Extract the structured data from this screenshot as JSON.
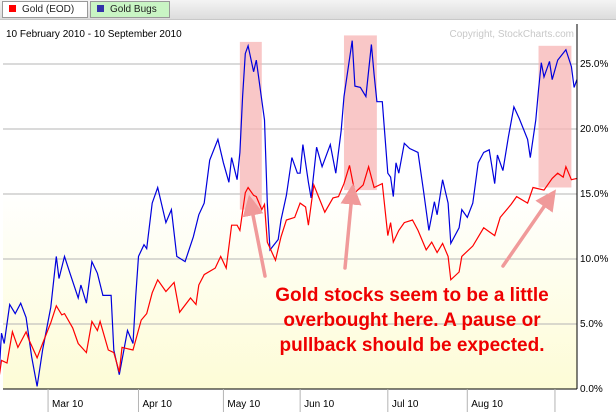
{
  "tabs": [
    {
      "label": "Gold (EOD)",
      "color": "#ff0000"
    },
    {
      "label": "Gold Bugs",
      "color": "#3333aa"
    }
  ],
  "chart_data": {
    "type": "line",
    "title": "10 February 2010 - 10 September 2010",
    "copyright": "Copyright, StockCharts.com",
    "x_unit": "days since 10 Feb 2010",
    "xlim": [
      0,
      212
    ],
    "ylim": [
      0,
      26.5
    ],
    "grid": true,
    "y_ticks": [
      {
        "v": 0,
        "label": "0.0%"
      },
      {
        "v": 5,
        "label": "5.0%"
      },
      {
        "v": 10,
        "label": "10.0%"
      },
      {
        "v": 15,
        "label": "15.0%"
      },
      {
        "v": 20,
        "label": "20.0%"
      },
      {
        "v": 25,
        "label": "25.0%"
      }
    ],
    "x_ticks": [
      {
        "v": 19,
        "label": "Mar 10"
      },
      {
        "v": 52,
        "label": "Apr 10"
      },
      {
        "v": 83,
        "label": "May 10"
      },
      {
        "v": 111,
        "label": "Jun 10"
      },
      {
        "v": 143,
        "label": "Jul 10"
      },
      {
        "v": 172,
        "label": "Aug 10"
      },
      {
        "v": 204,
        "label": ""
      }
    ],
    "series": [
      {
        "name": "Gold Bugs",
        "color": "#0000dd",
        "points": [
          [
            1,
            0.7
          ],
          [
            2,
            4.3
          ],
          [
            3,
            3.5
          ],
          [
            5,
            6.5
          ],
          [
            7,
            5.8
          ],
          [
            9,
            6.6
          ],
          [
            11,
            5.5
          ],
          [
            13,
            2.5
          ],
          [
            15,
            0.2
          ],
          [
            17,
            3.0
          ],
          [
            20,
            6.3
          ],
          [
            22,
            10.2
          ],
          [
            23,
            8.5
          ],
          [
            25,
            10.2
          ],
          [
            27,
            8.9
          ],
          [
            30,
            7.0
          ],
          [
            31,
            8.0
          ],
          [
            33,
            6.6
          ],
          [
            35,
            9.8
          ],
          [
            37,
            8.9
          ],
          [
            39,
            7.2
          ],
          [
            42,
            7.2
          ],
          [
            43,
            3.0
          ],
          [
            45,
            1.1
          ],
          [
            48,
            4.5
          ],
          [
            50,
            3.5
          ],
          [
            51,
            7.1
          ],
          [
            52,
            10.2
          ],
          [
            54,
            11.1
          ],
          [
            55,
            10.8
          ],
          [
            57,
            14.3
          ],
          [
            59,
            15.5
          ],
          [
            62,
            12.8
          ],
          [
            64,
            13.8
          ],
          [
            66,
            10.2
          ],
          [
            69,
            9.8
          ],
          [
            72,
            11.7
          ],
          [
            74,
            13.4
          ],
          [
            76,
            14.3
          ],
          [
            78,
            17.6
          ],
          [
            81,
            19.2
          ],
          [
            83,
            17.4
          ],
          [
            85,
            15.9
          ],
          [
            86,
            17.8
          ],
          [
            88,
            16.1
          ],
          [
            89,
            18.2
          ],
          [
            90,
            22.5
          ],
          [
            91,
            25.8
          ],
          [
            92,
            26.4
          ],
          [
            94,
            24.4
          ],
          [
            95,
            25.3
          ],
          [
            97,
            22.2
          ],
          [
            98,
            20.7
          ],
          [
            99,
            14.3
          ],
          [
            100,
            10.7
          ],
          [
            103,
            11.5
          ],
          [
            104,
            13.0
          ],
          [
            106,
            14.9
          ],
          [
            108,
            17.8
          ],
          [
            110,
            16.6
          ],
          [
            111,
            16.6
          ],
          [
            112,
            18.8
          ],
          [
            114,
            15.9
          ],
          [
            115,
            14.7
          ],
          [
            117,
            18.6
          ],
          [
            119,
            17.1
          ],
          [
            122,
            18.8
          ],
          [
            124,
            16.6
          ],
          [
            126,
            19.9
          ],
          [
            127,
            22.5
          ],
          [
            130,
            26.8
          ],
          [
            131,
            23.3
          ],
          [
            133,
            23.2
          ],
          [
            135,
            22.5
          ],
          [
            137,
            26.5
          ],
          [
            138,
            24.2
          ],
          [
            139,
            22.1
          ],
          [
            141,
            22.1
          ],
          [
            143,
            16.6
          ],
          [
            144,
            16.3
          ],
          [
            145,
            14.8
          ],
          [
            146,
            17.4
          ],
          [
            147,
            16.6
          ],
          [
            149,
            18.9
          ],
          [
            151,
            18.5
          ],
          [
            154,
            18.2
          ],
          [
            156,
            15.3
          ],
          [
            158,
            12.2
          ],
          [
            160,
            14.4
          ],
          [
            161,
            13.4
          ],
          [
            163,
            16.1
          ],
          [
            165,
            14.3
          ],
          [
            166,
            11.2
          ],
          [
            169,
            12.4
          ],
          [
            170,
            13.8
          ],
          [
            172,
            13.2
          ],
          [
            174,
            14.3
          ],
          [
            176,
            17.4
          ],
          [
            178,
            18.2
          ],
          [
            180,
            18.4
          ],
          [
            182,
            15.8
          ],
          [
            183,
            18.0
          ],
          [
            185,
            16.8
          ],
          [
            187,
            19.4
          ],
          [
            189,
            21.7
          ],
          [
            191,
            20.8
          ],
          [
            194,
            19.2
          ],
          [
            195,
            17.8
          ],
          [
            197,
            20.7
          ],
          [
            198,
            23.0
          ],
          [
            199,
            25.1
          ],
          [
            200,
            24.0
          ],
          [
            202,
            25.2
          ],
          [
            203,
            23.8
          ],
          [
            205,
            25.3
          ],
          [
            208,
            26.1
          ],
          [
            210,
            24.8
          ],
          [
            211,
            23.2
          ],
          [
            212,
            23.8
          ]
        ]
      },
      {
        "name": "Gold (EOD)",
        "color": "#ff0000",
        "points": [
          [
            1,
            0.7
          ],
          [
            2,
            2.2
          ],
          [
            4,
            2.0
          ],
          [
            6,
            4.4
          ],
          [
            8,
            3.2
          ],
          [
            11,
            4.4
          ],
          [
            12,
            3.8
          ],
          [
            15,
            2.4
          ],
          [
            17,
            3.5
          ],
          [
            20,
            5.1
          ],
          [
            22,
            6.4
          ],
          [
            24,
            5.7
          ],
          [
            25,
            5.8
          ],
          [
            28,
            4.7
          ],
          [
            30,
            3.5
          ],
          [
            33,
            2.8
          ],
          [
            35,
            5.2
          ],
          [
            37,
            4.5
          ],
          [
            38,
            5.2
          ],
          [
            41,
            3.0
          ],
          [
            43,
            2.8
          ],
          [
            45,
            1.3
          ],
          [
            46,
            3.2
          ],
          [
            50,
            3.0
          ],
          [
            53,
            5.3
          ],
          [
            55,
            5.8
          ],
          [
            57,
            7.4
          ],
          [
            59,
            8.4
          ],
          [
            62,
            7.5
          ],
          [
            65,
            8.2
          ],
          [
            67,
            5.9
          ],
          [
            71,
            7.0
          ],
          [
            73,
            6.5
          ],
          [
            74,
            8.0
          ],
          [
            76,
            8.8
          ],
          [
            80,
            9.3
          ],
          [
            82,
            10.2
          ],
          [
            84,
            9.3
          ],
          [
            86,
            12.6
          ],
          [
            88,
            12.6
          ],
          [
            89,
            12.2
          ],
          [
            91,
            15.1
          ],
          [
            92,
            15.5
          ],
          [
            94,
            14.9
          ],
          [
            95,
            14.8
          ],
          [
            97,
            13.8
          ],
          [
            98,
            14.2
          ],
          [
            99,
            11.3
          ],
          [
            102,
            9.9
          ],
          [
            104,
            11.7
          ],
          [
            106,
            13.0
          ],
          [
            109,
            13.2
          ],
          [
            111,
            14.3
          ],
          [
            113,
            14.0
          ],
          [
            114,
            12.6
          ],
          [
            116,
            15.7
          ],
          [
            120,
            13.6
          ],
          [
            123,
            14.7
          ],
          [
            125,
            14.8
          ],
          [
            127,
            15.8
          ],
          [
            129,
            17.2
          ],
          [
            131,
            15.1
          ],
          [
            134,
            15.7
          ],
          [
            136,
            17.1
          ],
          [
            138,
            15.5
          ],
          [
            141,
            15.8
          ],
          [
            143,
            11.8
          ],
          [
            144,
            12.8
          ],
          [
            145,
            11.3
          ],
          [
            147,
            12.2
          ],
          [
            149,
            12.8
          ],
          [
            152,
            13.0
          ],
          [
            154,
            12.2
          ],
          [
            157,
            10.7
          ],
          [
            159,
            11.3
          ],
          [
            161,
            10.5
          ],
          [
            163,
            11.2
          ],
          [
            165,
            10.2
          ],
          [
            166,
            8.4
          ],
          [
            169,
            9.0
          ],
          [
            170,
            10.2
          ],
          [
            174,
            11.0
          ],
          [
            178,
            12.4
          ],
          [
            180,
            12.1
          ],
          [
            182,
            11.8
          ],
          [
            184,
            13.2
          ],
          [
            188,
            14.2
          ],
          [
            190,
            14.8
          ],
          [
            194,
            14.3
          ],
          [
            196,
            15.5
          ],
          [
            200,
            15.3
          ],
          [
            203,
            16.2
          ],
          [
            205,
            16.6
          ],
          [
            207,
            16.3
          ],
          [
            208,
            17.1
          ],
          [
            210,
            16.1
          ],
          [
            212,
            16.2
          ]
        ]
      }
    ],
    "highlights": [
      {
        "x": [
          89,
          97
        ],
        "y": [
          13.8,
          26.7
        ]
      },
      {
        "x": [
          127,
          139
        ],
        "y": [
          15.3,
          27.2
        ]
      },
      {
        "x": [
          198,
          210
        ],
        "y": [
          15.5,
          26.4
        ]
      }
    ],
    "annotation": {
      "lines": [
        "Gold stocks seem to be a little",
        "overbought here. A pause or",
        "pullback should be expected."
      ],
      "color": "#ee0000"
    }
  }
}
